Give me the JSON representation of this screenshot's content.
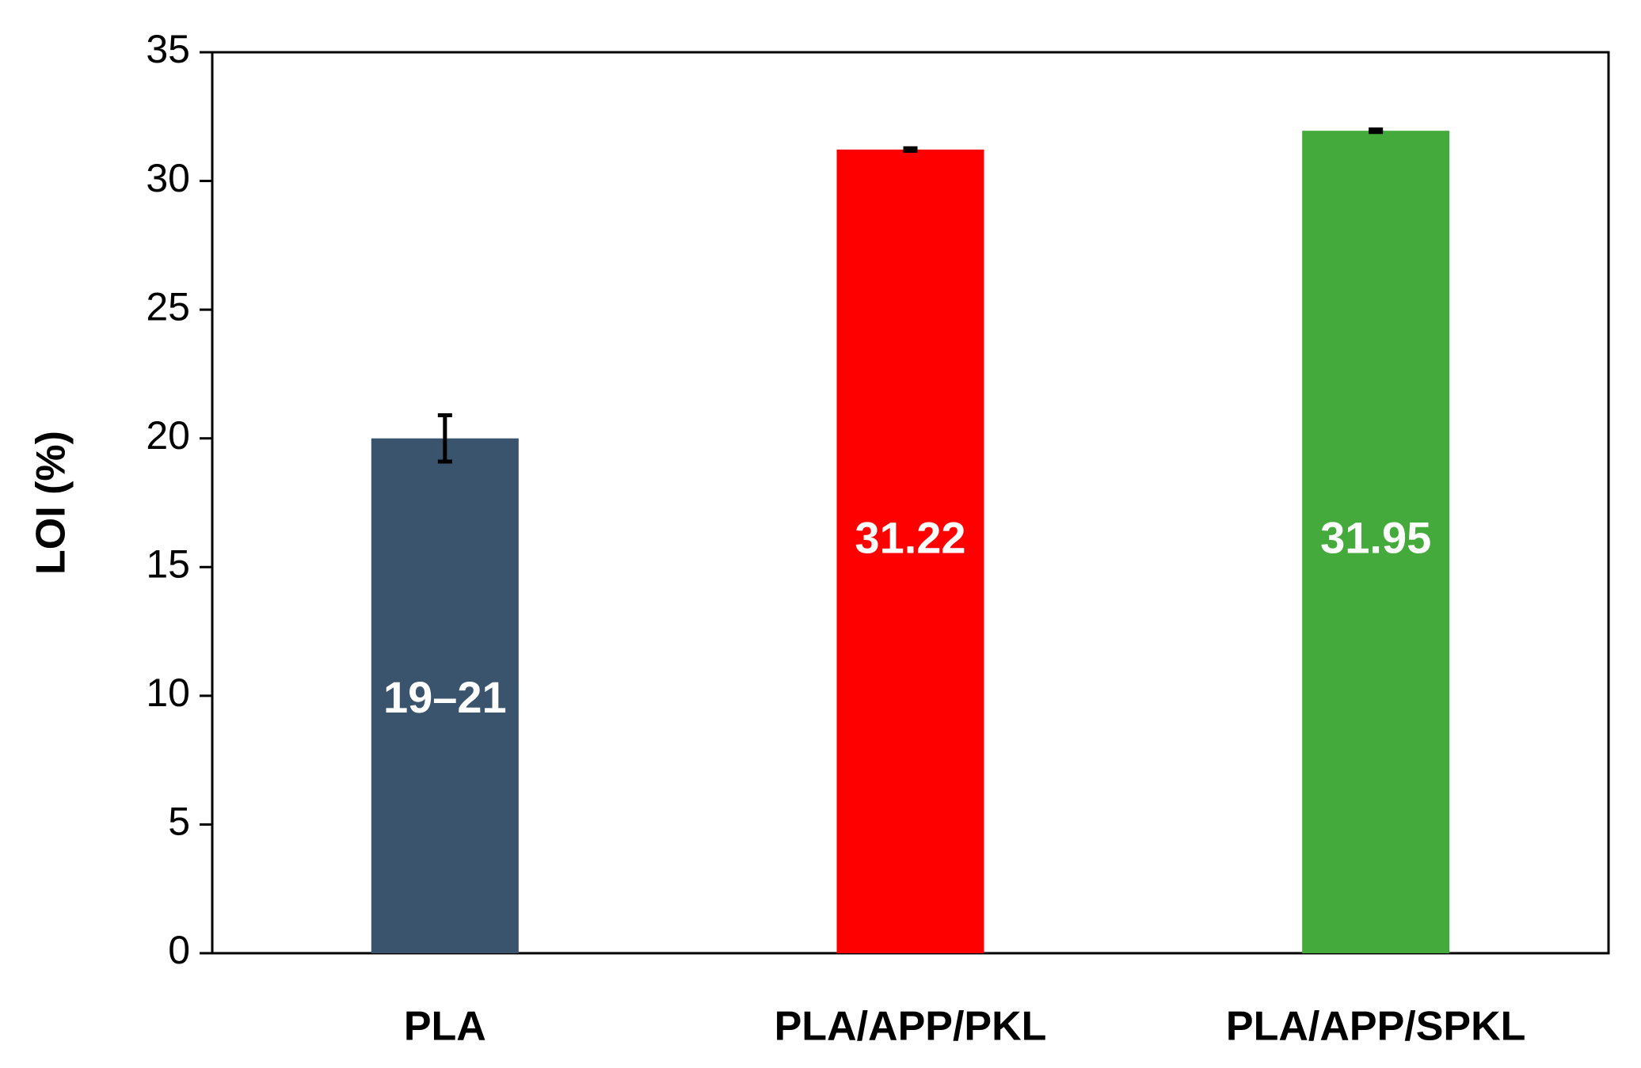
{
  "chart_data": {
    "type": "bar",
    "categories": [
      "PLA",
      "PLA/APP/PKL",
      "PLA/APP/SPKL"
    ],
    "values": [
      20,
      31.22,
      31.95
    ],
    "error_bars": [
      0.9,
      0.05,
      0.05
    ],
    "data_labels": [
      "19–21",
      "31.22",
      "31.95"
    ],
    "colors": [
      "#3a546d",
      "#ff0000",
      "#45aa3c"
    ],
    "xlabel": "",
    "ylabel": "LOI (%)",
    "ylim": [
      0,
      35
    ],
    "yticks": [
      0,
      5,
      10,
      15,
      20,
      25,
      30,
      35
    ],
    "grid": false,
    "legend": "none"
  }
}
